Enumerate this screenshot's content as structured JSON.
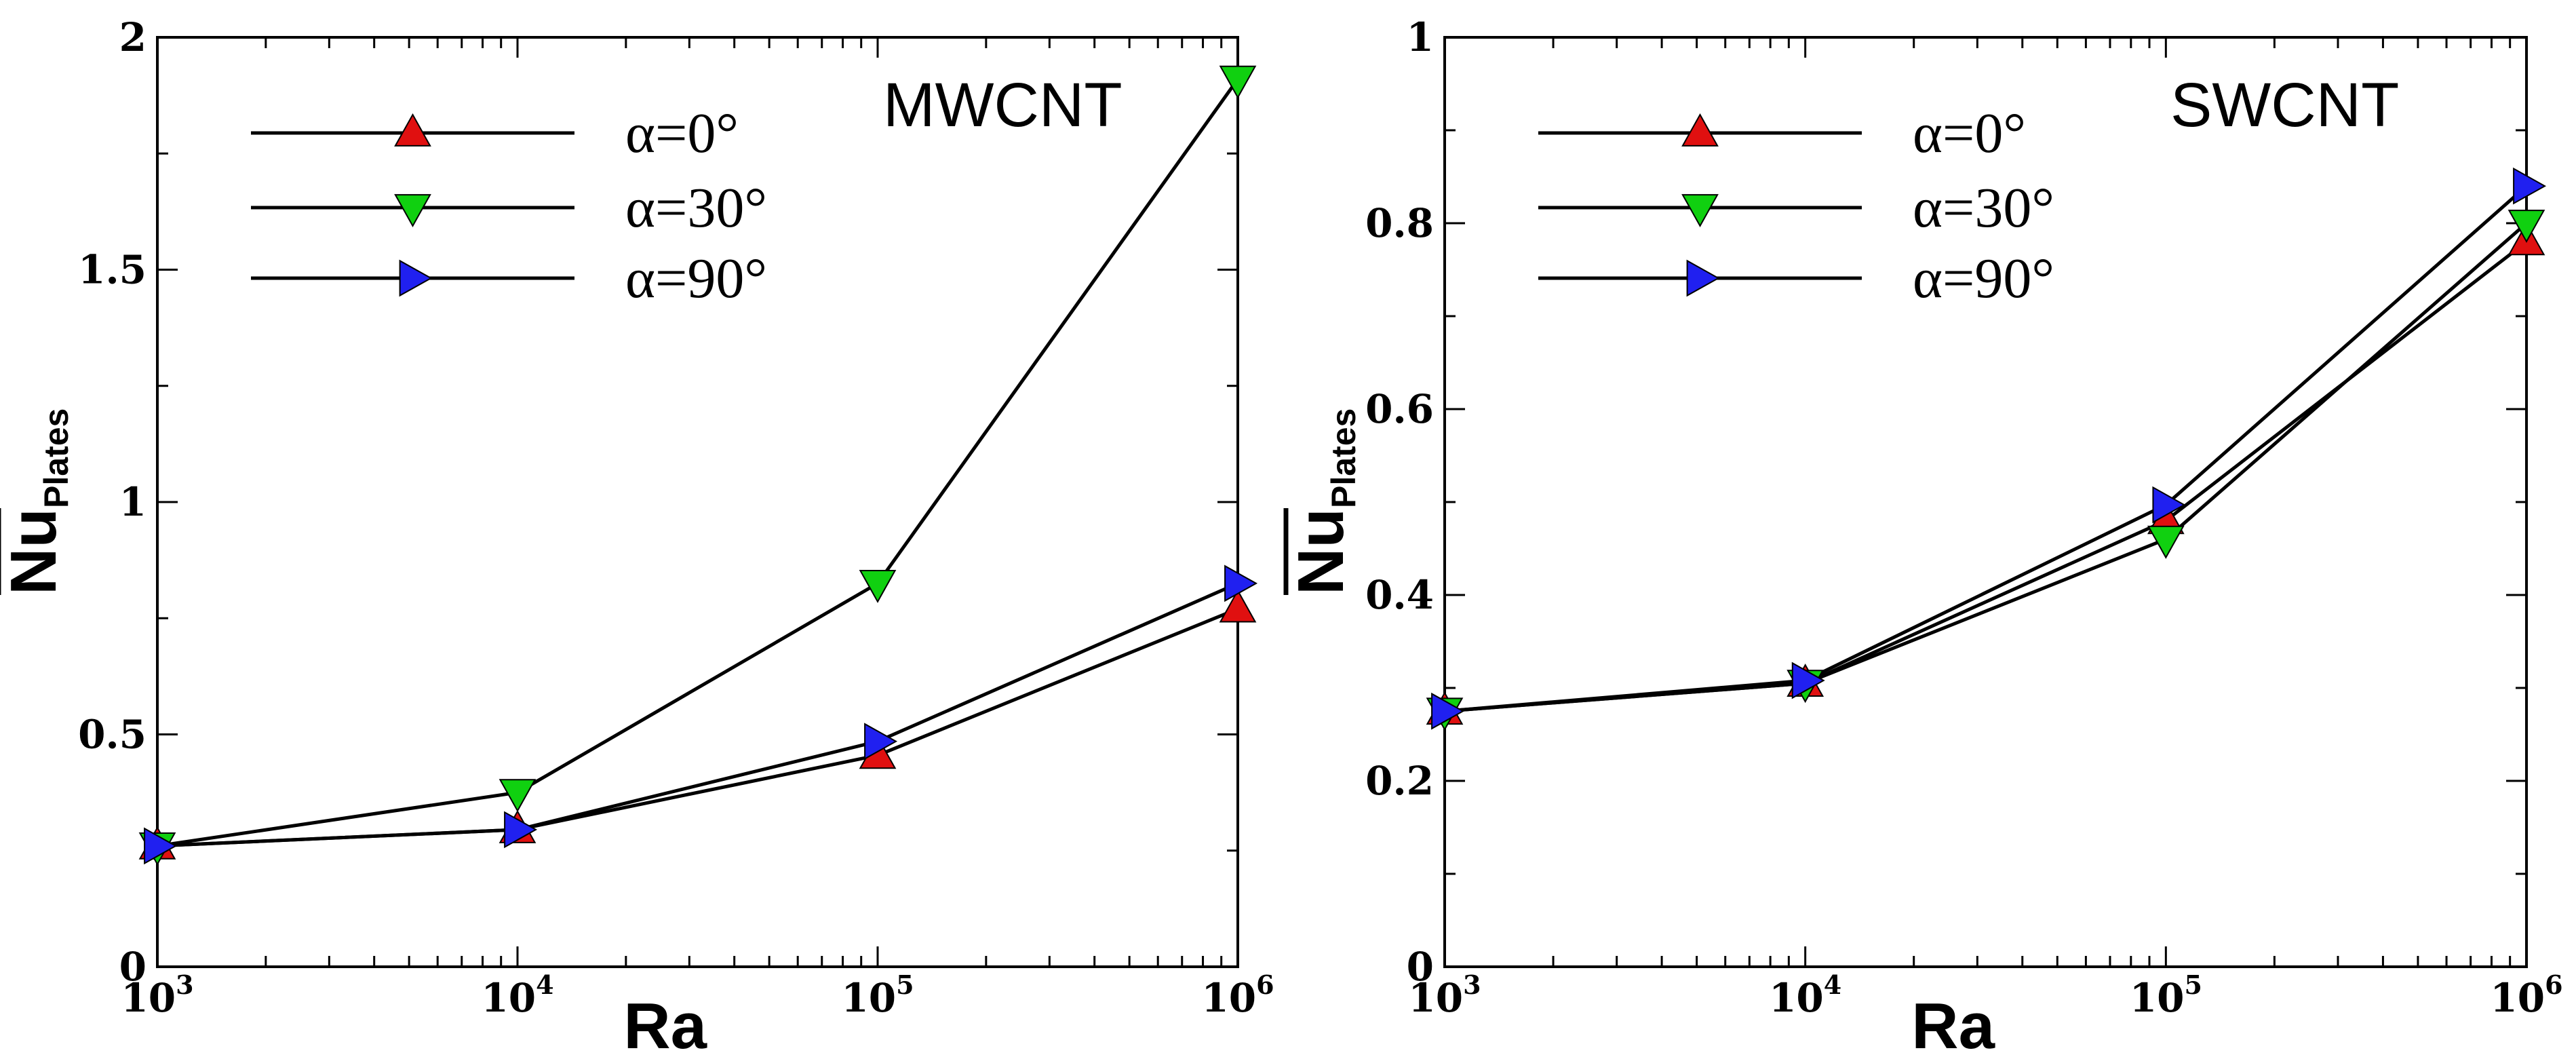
{
  "chart_data": [
    {
      "type": "line",
      "title": "MWCNT",
      "xlabel": "Ra",
      "ylabel": "Nu",
      "ylabel_sub": "Plates",
      "xscale": "log",
      "x": [
        1000,
        10000,
        100000,
        1000000
      ],
      "xlim": [
        1000,
        1000000
      ],
      "ylim": [
        0,
        2
      ],
      "x_ticks": [
        {
          "base": "10",
          "exp": "3"
        },
        {
          "base": "10",
          "exp": "4"
        },
        {
          "base": "10",
          "exp": "5"
        },
        {
          "base": "10",
          "exp": "6"
        }
      ],
      "y_ticks": [
        {
          "value": 0,
          "label": "0"
        },
        {
          "value": 0.5,
          "label": "0.5"
        },
        {
          "value": 1,
          "label": "1"
        },
        {
          "value": 1.5,
          "label": "1.5"
        },
        {
          "value": 2,
          "label": "2"
        }
      ],
      "grid": false,
      "legend_position": "top-left",
      "series": [
        {
          "name": "α=0°",
          "marker": "triangle-up",
          "color": "#e01010",
          "values": [
            0.26,
            0.295,
            0.455,
            0.77
          ]
        },
        {
          "name": "α=30°",
          "marker": "triangle-down",
          "color": "#10d010",
          "values": [
            0.26,
            0.375,
            0.825,
            1.91
          ]
        },
        {
          "name": "α=90°",
          "marker": "triangle-right",
          "color": "#2020f0",
          "values": [
            0.26,
            0.295,
            0.485,
            0.825
          ]
        }
      ]
    },
    {
      "type": "line",
      "title": "SWCNT",
      "xlabel": "Ra",
      "ylabel": "Nu",
      "ylabel_sub": "Plates",
      "xscale": "log",
      "x": [
        1000,
        10000,
        100000,
        1000000
      ],
      "xlim": [
        1000,
        1000000
      ],
      "ylim": [
        0,
        1
      ],
      "x_ticks": [
        {
          "base": "10",
          "exp": "3"
        },
        {
          "base": "10",
          "exp": "4"
        },
        {
          "base": "10",
          "exp": "5"
        },
        {
          "base": "10",
          "exp": "6"
        }
      ],
      "y_ticks": [
        {
          "value": 0,
          "label": "0"
        },
        {
          "value": 0.2,
          "label": "0.2"
        },
        {
          "value": 0.4,
          "label": "0.4"
        },
        {
          "value": 0.6,
          "label": "0.6"
        },
        {
          "value": 0.8,
          "label": "0.8"
        },
        {
          "value": 1,
          "label": "1"
        }
      ],
      "grid": false,
      "legend_position": "top-left",
      "series": [
        {
          "name": "α=0°",
          "marker": "triangle-up",
          "color": "#e01010",
          "values": [
            0.275,
            0.305,
            0.48,
            0.78
          ]
        },
        {
          "name": "α=30°",
          "marker": "triangle-down",
          "color": "#10d010",
          "values": [
            0.275,
            0.305,
            0.46,
            0.8
          ]
        },
        {
          "name": "α=90°",
          "marker": "triangle-right",
          "color": "#2020f0",
          "values": [
            0.275,
            0.308,
            0.497,
            0.84
          ]
        }
      ]
    }
  ]
}
